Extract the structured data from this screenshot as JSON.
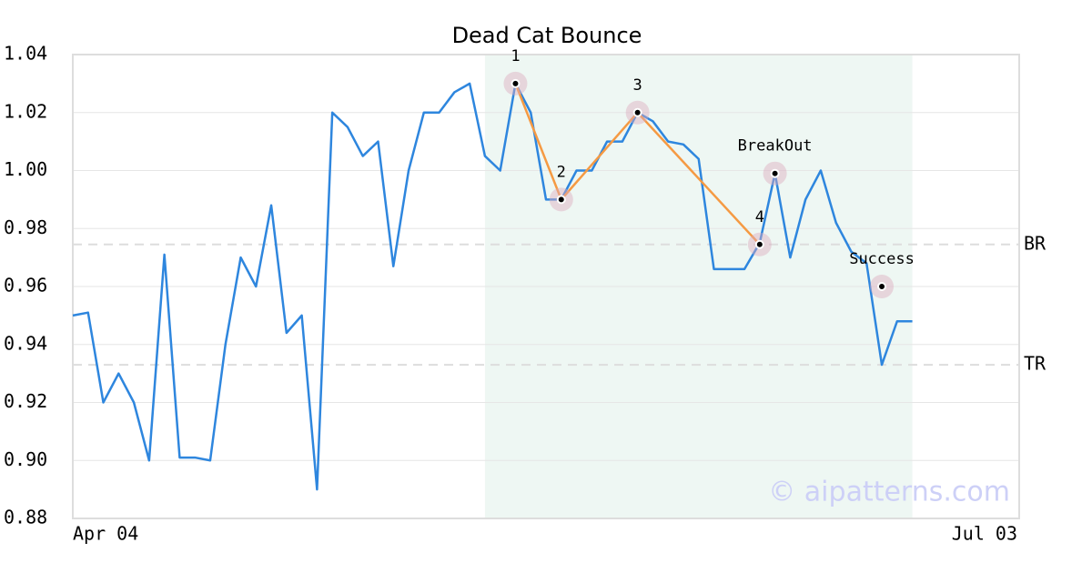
{
  "chart_data": {
    "type": "line",
    "title": "Dead Cat Bounce",
    "categories": [
      "Apr 04",
      null,
      null,
      null,
      null,
      null,
      null,
      null,
      null,
      null,
      null,
      null,
      null,
      null,
      null,
      null,
      null,
      null,
      null,
      null,
      null,
      null,
      null,
      null,
      null,
      null,
      null,
      null,
      null,
      null,
      null,
      null,
      null,
      null,
      null,
      null,
      null,
      null,
      null,
      null,
      null,
      null,
      null,
      null,
      null,
      null,
      null,
      null,
      null,
      null,
      null,
      null,
      null,
      null,
      null,
      null,
      null,
      null,
      null,
      null,
      null,
      null,
      "Jul 03"
    ],
    "series": [
      {
        "color": "#2e86de",
        "values": [
          0.95,
          0.951,
          0.92,
          0.93,
          0.92,
          0.9,
          0.971,
          0.901,
          0.901,
          0.9,
          0.94,
          0.97,
          0.96,
          0.988,
          0.944,
          0.95,
          0.89,
          1.02,
          1.015,
          1.005,
          1.01,
          0.967,
          1.0,
          1.02,
          1.02,
          1.027,
          1.03,
          1.005,
          1.0,
          1.03,
          1.02,
          0.99,
          0.99,
          1.0,
          1.0,
          1.01,
          1.01,
          1.02,
          1.017,
          1.01,
          1.009,
          1.004,
          0.966,
          0.966,
          0.966,
          0.975,
          0.999,
          0.97,
          0.99,
          1.0,
          0.982,
          0.972,
          0.968,
          0.933,
          0.948,
          0.948,
          null,
          null,
          null,
          null,
          null,
          null,
          null
        ]
      }
    ],
    "highlight_range": [
      27,
      55
    ],
    "highlight_color": "#eef7f3",
    "pattern_color": "#f59a43",
    "markers": [
      {
        "label": "1",
        "x": 29,
        "value": 1.03,
        "on_line": true
      },
      {
        "label": "2",
        "x": 32,
        "value": 0.99,
        "on_line": true
      },
      {
        "label": "3",
        "x": 37,
        "value": 1.02,
        "on_line": true
      },
      {
        "label": "4",
        "x": 45,
        "value": 0.9745,
        "on_line": true
      },
      {
        "label": "BreakOut",
        "x": 46,
        "value": 0.999,
        "on_line": false
      },
      {
        "label": "Success",
        "x": 53,
        "value": 0.96,
        "on_line": false
      }
    ],
    "levels": [
      {
        "label": "BR",
        "value": 0.9745
      },
      {
        "label": "TR",
        "value": 0.933
      }
    ],
    "watermark": "© aipatterns.com",
    "ylim": [
      0.88,
      1.04
    ],
    "yticks": [
      0.88,
      {
        "value": 0.9,
        "label": "0.90"
      },
      0.92,
      0.94,
      0.96,
      0.98,
      {
        "value": 1,
        "label": "1.00"
      },
      1.02,
      1.04
    ],
    "grid": true
  }
}
